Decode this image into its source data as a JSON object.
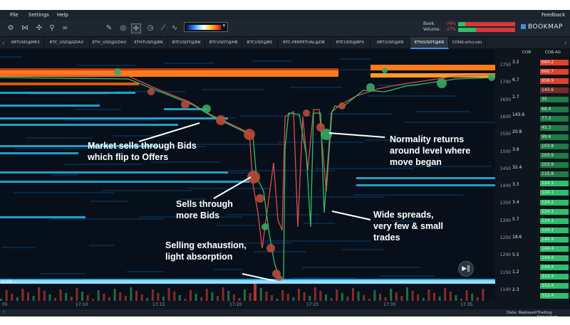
{
  "menu": {
    "file": "File",
    "settings": "Settings",
    "help": "Help",
    "feedback": "Feedback"
  },
  "toolbar": {
    "icons": [
      "settings-icon",
      "share-icon",
      "connect-icon",
      "link-icon",
      "slider-icon",
      "pencil-icon",
      "target-icon",
      "crosshair-icon",
      "timer-icon",
      "chart-line-icon"
    ],
    "book_label": "Book:",
    "book_pct": "-76%",
    "volume_label": "Volume:",
    "volume_pct": "-37%",
    "book_bar": {
      "green_fraction": 0.12,
      "red_fraction": 0.88
    },
    "volume_bar": {
      "green_fraction": 0.31,
      "red_fraction": 0.69
    }
  },
  "brand": {
    "name": "BOOKMAP"
  },
  "tabs": [
    {
      "label": "XBTUSD@MEX",
      "active": false
    },
    {
      "label": "BTC_USD@GDAX",
      "active": false
    },
    {
      "label": "ETH_USD@GDAX",
      "active": false
    },
    {
      "label": "ETHTUSD@BN",
      "active": false
    },
    {
      "label": "BTCUSDT@BN",
      "active": false
    },
    {
      "label": "BTCUSDT@HB",
      "active": false
    },
    {
      "label": "BTCUSD@BS",
      "active": false
    },
    {
      "label": "BTC-PERPETUAL@DB",
      "active": false
    },
    {
      "label": "BTCUSD@BFX",
      "active": false
    },
    {
      "label": "XBT/USD@KR",
      "active": false
    },
    {
      "label": "ETH/USDT@KR",
      "active": true
    },
    {
      "label": "CONS:eth(cob)",
      "active": false
    }
  ],
  "columns": {
    "cob": "COB",
    "cob_ag": "COB-AG"
  },
  "price_ticks": [
    "1750",
    "1700",
    "1650",
    "1600",
    "1550",
    "1500",
    "1450",
    "1400",
    "1350",
    "1300",
    "1250",
    "1200",
    "1150",
    "1100"
  ],
  "cob_values": [
    "3.2",
    "6.7",
    "1.7",
    "143.6",
    "20.8",
    "3.9",
    "32.4",
    "3.3",
    "3.4",
    "5.7",
    "18.6",
    "5.5",
    "1.2",
    "2.3"
  ],
  "cob_ag_values": [
    "664.2",
    "660.7",
    "658.9",
    "143.6",
    "35",
    "66.4",
    "77.3",
    "45.3",
    "99.6",
    "103.8",
    "103.9",
    "103.9",
    "115.8",
    "124.1",
    "124.1",
    "124.1",
    "124.1",
    "124.1",
    "124.1",
    "144.4",
    "144.4",
    "144.4",
    "144.4",
    "312.4",
    "312.4",
    "312.4"
  ],
  "left_price_label": "1100",
  "time_ticks": [
    "17:10",
    "17:15",
    "17:20",
    "17:25",
    "17:30",
    "17:35"
  ],
  "time_left_label": "05",
  "status": {
    "left_icon": "T",
    "data": "Data: Replayed",
    "trading": "Trading: Simulated"
  },
  "annotations": {
    "a1": [
      "Market sells through Bids",
      "which flip to Offers"
    ],
    "a2": [
      "Sells through",
      "more Bids"
    ],
    "a3": [
      "Selling exhaustion,",
      "light absorption"
    ],
    "a4": [
      "Normality returns",
      "around level where",
      "move began"
    ],
    "a5": [
      "Wide spreads,",
      "very few & small",
      "trades"
    ]
  },
  "colors": {
    "bid_line": "#2fbf6a",
    "ask_line": "#e14b4b",
    "heat_orange": "#ff7a1a",
    "heat_cyan": "#27b7e8",
    "bg": "#07101a"
  }
}
